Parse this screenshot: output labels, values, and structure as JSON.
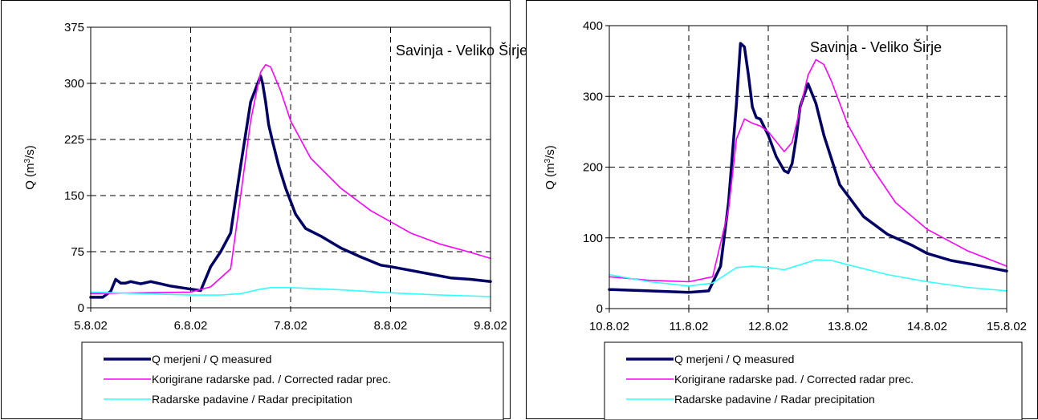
{
  "colors": {
    "measured": "#000066",
    "corrected": "#ff00ff",
    "radar": "#33ffff",
    "grid": "#000000",
    "frame": "#000000"
  },
  "chart_data": [
    {
      "type": "line",
      "annotation": "Savinja - Veliko Širje",
      "ylabel_prefix": "Q (m",
      "ylabel_sup": "3",
      "ylabel_suffix": "/s)",
      "xlim": [
        0,
        4
      ],
      "ylim": [
        0,
        375
      ],
      "yticks": [
        0,
        75,
        150,
        225,
        300,
        375
      ],
      "xtick_labels": [
        "5.8.02",
        "6.8.02",
        "7.8.02",
        "8.8.02",
        "9.8.02"
      ],
      "grid": true,
      "legend_position": "bottom",
      "series": [
        {
          "name": "Q merjeni / Q measured",
          "color_key": "measured",
          "x": [
            0,
            0.12,
            0.2,
            0.25,
            0.3,
            0.35,
            0.4,
            0.5,
            0.6,
            0.7,
            0.8,
            0.9,
            1.0,
            1.1,
            1.2,
            1.3,
            1.4,
            1.5,
            1.6,
            1.7,
            1.72,
            1.75,
            1.78,
            1.82,
            1.88,
            1.95,
            2.05,
            2.15,
            2.3,
            2.5,
            2.7,
            2.9,
            3.0,
            3.2,
            3.4,
            3.6,
            3.8,
            4.0
          ],
          "y": [
            14,
            14,
            22,
            38,
            33,
            33,
            35,
            32,
            35,
            32,
            29,
            27,
            25,
            23,
            55,
            75,
            100,
            190,
            275,
            310,
            300,
            275,
            245,
            222,
            190,
            160,
            125,
            106,
            96,
            80,
            68,
            57,
            55,
            50,
            45,
            40,
            38,
            35
          ]
        },
        {
          "name": "Korigirane radarske pad. / Corrected radar prec.",
          "color_key": "corrected",
          "x": [
            0,
            0.5,
            1.0,
            1.2,
            1.4,
            1.5,
            1.6,
            1.7,
            1.75,
            1.8,
            1.9,
            2.0,
            2.2,
            2.5,
            2.8,
            3.0,
            3.2,
            3.5,
            3.8,
            4.0
          ],
          "y": [
            19,
            20,
            21,
            28,
            52,
            150,
            250,
            315,
            325,
            322,
            290,
            250,
            200,
            160,
            130,
            115,
            100,
            85,
            74,
            66
          ]
        },
        {
          "name": "Radarske padavine / Radar precipitation",
          "color_key": "radar",
          "x": [
            0,
            0.5,
            1.0,
            1.3,
            1.5,
            1.7,
            1.8,
            2.0,
            2.5,
            3.0,
            3.5,
            4.0
          ],
          "y": [
            21,
            19,
            17,
            17,
            19,
            25,
            27,
            27,
            24,
            20,
            17,
            15
          ]
        }
      ]
    },
    {
      "type": "line",
      "annotation": "Savinja - Veliko Širje",
      "ylabel_prefix": "Q (m",
      "ylabel_sup": "3",
      "ylabel_suffix": "/s)",
      "xlim": [
        0,
        5
      ],
      "ylim": [
        0,
        400
      ],
      "yticks": [
        0,
        100,
        200,
        300,
        400
      ],
      "xtick_labels": [
        "10.8.02",
        "11.8.02",
        "12.8.02",
        "13.8.02",
        "14.8.02",
        "15.8.02"
      ],
      "grid": true,
      "legend_position": "bottom",
      "series": [
        {
          "name": "Q merjeni / Q measured",
          "color_key": "measured",
          "x": [
            0,
            0.5,
            1.0,
            1.25,
            1.4,
            1.5,
            1.6,
            1.65,
            1.7,
            1.75,
            1.8,
            1.85,
            1.9,
            2.0,
            2.1,
            2.2,
            2.25,
            2.3,
            2.35,
            2.4,
            2.5,
            2.6,
            2.7,
            2.8,
            2.9,
            3.0,
            3.2,
            3.5,
            3.8,
            4.0,
            4.3,
            4.6,
            5.0
          ],
          "y": [
            27,
            25,
            23,
            25,
            60,
            150,
            290,
            375,
            370,
            330,
            285,
            270,
            268,
            245,
            215,
            195,
            192,
            205,
            240,
            285,
            318,
            290,
            245,
            210,
            175,
            160,
            130,
            105,
            90,
            78,
            68,
            62,
            53
          ]
        },
        {
          "name": "Korigirane radarske pad. / Corrected radar prec.",
          "color_key": "corrected",
          "x": [
            0,
            0.5,
            1.0,
            1.3,
            1.5,
            1.6,
            1.7,
            1.8,
            1.9,
            2.0,
            2.2,
            2.3,
            2.5,
            2.6,
            2.7,
            2.8,
            3.0,
            3.3,
            3.6,
            4.0,
            4.5,
            5.0
          ],
          "y": [
            45,
            40,
            38,
            45,
            140,
            240,
            268,
            262,
            258,
            250,
            222,
            235,
            330,
            352,
            345,
            320,
            260,
            200,
            150,
            112,
            82,
            60
          ]
        },
        {
          "name": "Radarske padavine / Radar precipitation",
          "color_key": "radar",
          "x": [
            0,
            0.5,
            1.0,
            1.3,
            1.6,
            1.8,
            2.0,
            2.2,
            2.4,
            2.6,
            2.8,
            3.0,
            3.5,
            4.0,
            4.5,
            5.0
          ],
          "y": [
            48,
            38,
            32,
            36,
            58,
            60,
            58,
            55,
            62,
            69,
            68,
            62,
            48,
            38,
            30,
            25
          ]
        }
      ]
    }
  ]
}
